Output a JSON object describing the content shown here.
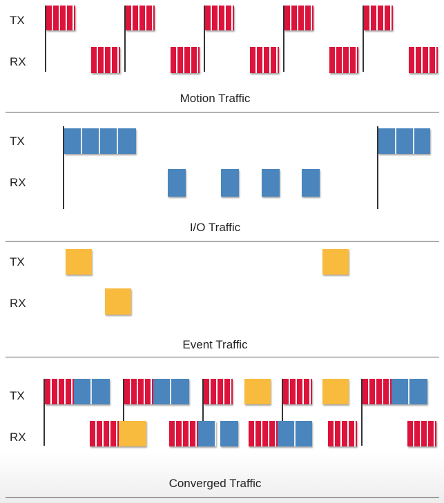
{
  "panels": [
    {
      "caption": "Motion Traffic",
      "tx_label": "TX",
      "rx_label": "RX"
    },
    {
      "caption": "I/O Traffic",
      "tx_label": "TX",
      "rx_label": "RX"
    },
    {
      "caption": "Event Traffic",
      "tx_label": "TX",
      "rx_label": "RX"
    },
    {
      "caption": "Converged Traffic",
      "tx_label": "TX",
      "rx_label": "RX"
    }
  ],
  "colors": {
    "motion": "#dc143c",
    "io": "#4a86bd",
    "event": "#f8bb3e",
    "rule": "#555555"
  }
}
